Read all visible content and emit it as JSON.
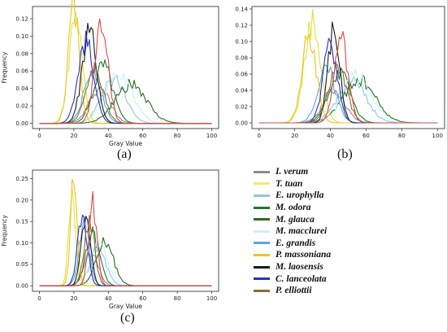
{
  "panel_labels": [
    "(a)",
    "(b)",
    "(c)"
  ],
  "legend": [
    {
      "name": "I. verum",
      "color": "#8c8c8c"
    },
    {
      "name": "T. tuan",
      "color": "#e8f26a"
    },
    {
      "name": "E. urophylla",
      "color": "#8fc6ea"
    },
    {
      "name": "M. odora",
      "color": "#1d7a2e"
    },
    {
      "name": "M. glauca",
      "color": "#2f6b22"
    },
    {
      "name": "M. macclurei",
      "color": "#c9f3f7"
    },
    {
      "name": "E. grandis",
      "color": "#5aa7d8"
    },
    {
      "name": "P. massoniana",
      "color": "#f0c419"
    },
    {
      "name": "M. laosensis",
      "color": "#1a1a1a"
    },
    {
      "name": "C. lanceolata",
      "color": "#2630c8"
    },
    {
      "name": "P. elliottii",
      "color": "#8a6a3a"
    }
  ],
  "chart_data": [
    {
      "type": "line",
      "panel": "(a)",
      "xlabel": "Gray Value",
      "ylabel": "Frequency",
      "xlim": [
        -4,
        104
      ],
      "ylim": [
        -0.006,
        0.134
      ],
      "xticks": [
        0,
        20,
        40,
        60,
        80,
        100
      ],
      "yticks": [
        0.0,
        0.02,
        0.04,
        0.06,
        0.08,
        0.1,
        0.12
      ],
      "ytick_labels": [
        "0.00",
        "0.02",
        "0.04",
        "0.06",
        "0.08",
        "0.10",
        "0.12"
      ],
      "series": [
        {
          "legend_index": 0,
          "color": "#8c8c8c",
          "peak_x": 35,
          "peak_y": 0.04,
          "spread": 6
        },
        {
          "legend_index": 1,
          "color": "#d8e63a",
          "peak_x": 21,
          "peak_y": 0.125,
          "spread": 3.8
        },
        {
          "legend_index": 2,
          "color": "#8fc6ea",
          "peak_x": 43,
          "peak_y": 0.05,
          "spread": 7
        },
        {
          "legend_index": 3,
          "color": "#1d7a2e",
          "peak_x": 37,
          "peak_y": 0.068,
          "spread": 5.5
        },
        {
          "legend_index": 4,
          "color": "#2f6b22",
          "peak_x": 53,
          "peak_y": 0.044,
          "spread": 9
        },
        {
          "legend_index": 5,
          "color": "#c9f3f7",
          "peak_x": 46,
          "peak_y": 0.055,
          "spread": 8
        },
        {
          "legend_index": 6,
          "color": "#5aa7d8",
          "peak_x": 31,
          "peak_y": 0.06,
          "spread": 5
        },
        {
          "legend_index": 7,
          "color": "#f0c419",
          "peak_x": 20,
          "peak_y": 0.13,
          "spread": 3.2
        },
        {
          "legend_index": 8,
          "color": "#1a1a1a",
          "peak_x": 29,
          "peak_y": 0.104,
          "spread": 4.2
        },
        {
          "legend_index": 9,
          "color": "#2630c8",
          "peak_x": 27,
          "peak_y": 0.092,
          "spread": 4.5
        },
        {
          "legend_index": 10,
          "color": "#8a6a3a",
          "peak_x": 32,
          "peak_y": 0.062,
          "spread": 5
        },
        {
          "legend_index": null,
          "color": "#d94a4a",
          "peak_x": 36,
          "peak_y": 0.115,
          "spread": 3.8
        }
      ]
    },
    {
      "type": "line",
      "panel": "(b)",
      "xlabel": "",
      "ylabel": "",
      "xlim": [
        -4,
        104
      ],
      "ylim": [
        -0.007,
        0.143
      ],
      "xticks": [
        0,
        20,
        40,
        60,
        80,
        100
      ],
      "yticks": [
        0.0,
        0.02,
        0.04,
        0.06,
        0.08,
        0.1,
        0.12,
        0.14
      ],
      "ytick_labels": [
        "0.00",
        "0.02",
        "0.04",
        "0.06",
        "0.08",
        "0.10",
        "0.12",
        "0.14"
      ],
      "series": [
        {
          "legend_index": 0,
          "color": "#8c8c8c",
          "peak_x": 42,
          "peak_y": 0.04,
          "spread": 6
        },
        {
          "legend_index": 1,
          "color": "#d8e63a",
          "peak_x": 30,
          "peak_y": 0.125,
          "spread": 4.5
        },
        {
          "legend_index": 2,
          "color": "#8fc6ea",
          "peak_x": 52,
          "peak_y": 0.05,
          "spread": 8
        },
        {
          "legend_index": 3,
          "color": "#1d7a2e",
          "peak_x": 45,
          "peak_y": 0.062,
          "spread": 6
        },
        {
          "legend_index": 4,
          "color": "#2f6b22",
          "peak_x": 56,
          "peak_y": 0.052,
          "spread": 9
        },
        {
          "legend_index": 5,
          "color": "#c9f3f7",
          "peak_x": 55,
          "peak_y": 0.058,
          "spread": 8
        },
        {
          "legend_index": 6,
          "color": "#5aa7d8",
          "peak_x": 38,
          "peak_y": 0.065,
          "spread": 5
        },
        {
          "legend_index": 7,
          "color": "#f0c419",
          "peak_x": 28,
          "peak_y": 0.108,
          "spread": 4
        },
        {
          "legend_index": 8,
          "color": "#1a1a1a",
          "peak_x": 42,
          "peak_y": 0.12,
          "spread": 3.2
        },
        {
          "legend_index": 9,
          "color": "#2630c8",
          "peak_x": 40,
          "peak_y": 0.094,
          "spread": 4
        },
        {
          "legend_index": 10,
          "color": "#8a6a3a",
          "peak_x": 44,
          "peak_y": 0.07,
          "spread": 5
        },
        {
          "legend_index": null,
          "color": "#d94a4a",
          "peak_x": 46,
          "peak_y": 0.104,
          "spread": 3.8
        }
      ]
    },
    {
      "type": "line",
      "panel": "(c)",
      "xlabel": "Gray Value",
      "ylabel": "Frequency",
      "xlim": [
        -4,
        104
      ],
      "ylim": [
        -0.013,
        0.27
      ],
      "xticks": [
        0,
        20,
        40,
        60,
        80,
        100
      ],
      "yticks": [
        0.0,
        0.05,
        0.1,
        0.15,
        0.2,
        0.25
      ],
      "ytick_labels": [
        "0.00",
        "0.05",
        "0.10",
        "0.15",
        "0.20",
        "0.25"
      ],
      "series": [
        {
          "legend_index": 0,
          "color": "#8c8c8c",
          "peak_x": 30,
          "peak_y": 0.08,
          "spread": 4
        },
        {
          "legend_index": 1,
          "color": "#d8e63a",
          "peak_x": 19,
          "peak_y": 0.23,
          "spread": 1.9
        },
        {
          "legend_index": 2,
          "color": "#8fc6ea",
          "peak_x": 34,
          "peak_y": 0.09,
          "spread": 4.5
        },
        {
          "legend_index": 3,
          "color": "#1d7a2e",
          "peak_x": 31,
          "peak_y": 0.12,
          "spread": 4
        },
        {
          "legend_index": 4,
          "color": "#2f6b22",
          "peak_x": 38,
          "peak_y": 0.1,
          "spread": 5
        },
        {
          "legend_index": 5,
          "color": "#c9f3f7",
          "peak_x": 35,
          "peak_y": 0.095,
          "spread": 5
        },
        {
          "legend_index": 6,
          "color": "#5aa7d8",
          "peak_x": 26,
          "peak_y": 0.14,
          "spread": 3
        },
        {
          "legend_index": 7,
          "color": "#f0c419",
          "peak_x": 20,
          "peak_y": 0.255,
          "spread": 1.9
        },
        {
          "legend_index": 8,
          "color": "#1a1a1a",
          "peak_x": 27,
          "peak_y": 0.17,
          "spread": 2.6
        },
        {
          "legend_index": 9,
          "color": "#2630c8",
          "peak_x": 25,
          "peak_y": 0.16,
          "spread": 2.8
        },
        {
          "legend_index": 10,
          "color": "#8a6a3a",
          "peak_x": 29,
          "peak_y": 0.15,
          "spread": 3
        },
        {
          "legend_index": null,
          "color": "#d94a4a",
          "peak_x": 31,
          "peak_y": 0.19,
          "spread": 2.4
        }
      ]
    }
  ]
}
